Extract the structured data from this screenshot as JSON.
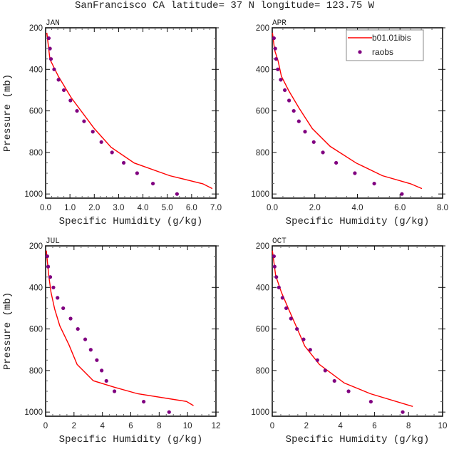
{
  "title": "SanFrancisco CA  latitude= 37 N longitude= 123.75 W",
  "legend": {
    "placement": "top-right of APR panel",
    "entries": [
      {
        "label": "b01.01ibis",
        "style": "line",
        "color": "#ff0000"
      },
      {
        "label": "raobs",
        "style": "dots",
        "color": "#800080"
      }
    ]
  },
  "chart_data": [
    {
      "type": "line+scatter",
      "panel_label": "JAN",
      "xlabel": "Specific Humidity (g/kg)",
      "ylabel": "Pressure (mb)",
      "xlim": [
        0,
        7
      ],
      "ylim": [
        200,
        1020
      ],
      "y_inverted": true,
      "xticks": [
        "0.0",
        "1.0",
        "2.0",
        "3.0",
        "4.0",
        "5.0",
        "6.0",
        "7.0"
      ],
      "yticks": [
        "200",
        "400",
        "600",
        "800",
        "1000"
      ],
      "model": {
        "name": "b01.01ibis",
        "q": [
          0.05,
          0.18,
          0.52,
          1.05,
          2.0,
          2.69,
          3.64,
          5.1,
          6.46,
          6.85
        ],
        "p": [
          224,
          352,
          433,
          536,
          685,
          775,
          851,
          912,
          951,
          974
        ]
      },
      "obs": {
        "name": "raobs",
        "q": [
          0.13,
          0.18,
          0.22,
          0.35,
          0.53,
          0.75,
          1.02,
          1.29,
          1.58,
          1.94,
          2.29,
          2.73,
          3.21,
          3.76,
          4.41,
          5.4
        ],
        "p": [
          250,
          300,
          350,
          400,
          450,
          500,
          550,
          600,
          650,
          700,
          750,
          800,
          850,
          900,
          950,
          1000
        ]
      }
    },
    {
      "type": "line+scatter",
      "panel_label": "APR",
      "xlabel": "Specific Humidity (g/kg)",
      "ylabel": "",
      "xlim": [
        0,
        8
      ],
      "ylim": [
        200,
        1020
      ],
      "y_inverted": true,
      "xticks": [
        "0.0",
        "2.0",
        "4.0",
        "6.0",
        "8.0"
      ],
      "yticks": [
        "200",
        "400",
        "600",
        "800",
        "1000"
      ],
      "model": {
        "name": "b01.01ibis",
        "q": [
          0.01,
          0.11,
          0.27,
          0.43,
          0.77,
          1.27,
          1.88,
          2.72,
          3.94,
          5.17,
          6.5,
          7.03
        ],
        "p": [
          224,
          307,
          358,
          433,
          502,
          588,
          685,
          771,
          851,
          912,
          951,
          974
        ]
      },
      "obs": {
        "name": "raobs",
        "q": [
          0.08,
          0.14,
          0.18,
          0.26,
          0.4,
          0.59,
          0.79,
          1.01,
          1.25,
          1.54,
          1.95,
          2.38,
          3.0,
          3.88,
          4.79,
          6.09
        ],
        "p": [
          250,
          300,
          350,
          400,
          450,
          500,
          550,
          600,
          650,
          700,
          750,
          800,
          850,
          900,
          950,
          1000
        ]
      }
    },
    {
      "type": "line+scatter",
      "panel_label": "JUL",
      "xlabel": "Specific Humidity (g/kg)",
      "ylabel": "Pressure (mb)",
      "xlim": [
        0,
        12
      ],
      "ylim": [
        200,
        1020
      ],
      "y_inverted": true,
      "xticks": [
        "0",
        "2",
        "4",
        "6",
        "8",
        "10",
        "12"
      ],
      "yticks": [
        "200",
        "400",
        "600",
        "800",
        "1000"
      ],
      "model": {
        "name": "b01.01ibis",
        "q": [
          0.05,
          0.22,
          0.38,
          0.64,
          1.0,
          1.64,
          2.22,
          3.36,
          4.82,
          6.49,
          9.92,
          10.42
        ],
        "p": [
          223,
          343,
          424,
          504,
          585,
          676,
          771,
          849,
          880,
          912,
          949,
          969
        ]
      },
      "obs": {
        "name": "raobs",
        "q": [
          0.12,
          0.18,
          0.33,
          0.55,
          0.84,
          1.24,
          1.76,
          2.27,
          2.79,
          3.18,
          3.61,
          3.95,
          4.28,
          4.85,
          6.91,
          8.7
        ],
        "p": [
          250,
          300,
          350,
          400,
          450,
          500,
          550,
          600,
          650,
          700,
          750,
          800,
          850,
          900,
          950,
          1000
        ]
      }
    },
    {
      "type": "line+scatter",
      "panel_label": "OCT",
      "xlabel": "Specific Humidity (g/kg)",
      "ylabel": "",
      "xlim": [
        0,
        10
      ],
      "ylim": [
        200,
        1020
      ],
      "y_inverted": true,
      "xticks": [
        "0",
        "2",
        "4",
        "6",
        "8",
        "10"
      ],
      "yticks": [
        "200",
        "400",
        "600",
        "800",
        "1000"
      ],
      "model": {
        "name": "b01.01ibis",
        "q": [
          0.01,
          0.2,
          0.54,
          0.96,
          1.45,
          1.91,
          2.77,
          4.23,
          5.77,
          8.25
        ],
        "p": [
          223,
          343,
          424,
          504,
          596,
          682,
          771,
          860,
          912,
          973
        ]
      },
      "obs": {
        "name": "raobs",
        "q": [
          0.1,
          0.14,
          0.24,
          0.39,
          0.6,
          0.82,
          1.1,
          1.45,
          1.84,
          2.23,
          2.65,
          3.11,
          3.65,
          4.48,
          5.79,
          7.66
        ],
        "p": [
          250,
          300,
          350,
          400,
          450,
          500,
          550,
          600,
          650,
          700,
          750,
          800,
          850,
          900,
          950,
          1000
        ]
      }
    }
  ]
}
